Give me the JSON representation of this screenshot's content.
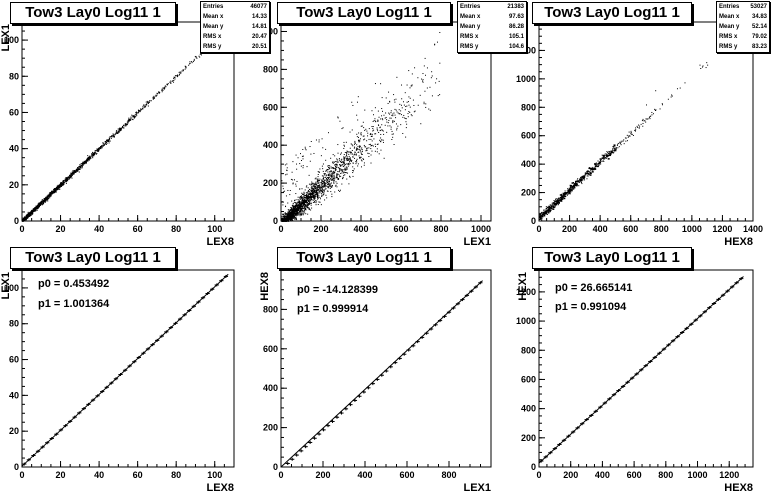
{
  "chart_data": [
    {
      "type": "scatter",
      "title": "Tow3 Lay0 Log11 1",
      "xlabel": "LEX8",
      "ylabel": "LEX1",
      "xlim": [
        0,
        110
      ],
      "ylim": [
        0,
        110
      ],
      "xticks": [
        0,
        20,
        40,
        60,
        80,
        100
      ],
      "yticks": [
        0,
        20,
        40,
        60,
        80,
        100
      ],
      "stats": [
        {
          "label": "Entries",
          "value": "46077"
        },
        {
          "label": "Mean x",
          "value": "14.33"
        },
        {
          "label": "Mean y",
          "value": "14.81"
        },
        {
          "label": "RMS x",
          "value": "20.47"
        },
        {
          "label": "RMS y",
          "value": "20.51"
        }
      ],
      "trend": {
        "slope": 1.0,
        "intercept": 0.3,
        "xmax": 104,
        "spread": 0.6
      }
    },
    {
      "type": "scatter",
      "title": "Tow3 Lay0 Log11 1",
      "xlabel": "LEX1",
      "ylabel": "HEX8",
      "xlim": [
        0,
        1050
      ],
      "ylim": [
        0,
        1050
      ],
      "xticks": [
        0,
        200,
        400,
        600,
        800,
        1000
      ],
      "yticks": [
        0,
        200,
        400,
        600,
        800,
        1000
      ],
      "stats": [
        {
          "label": "Entries",
          "value": "21383"
        },
        {
          "label": "Mean x",
          "value": "97.63"
        },
        {
          "label": "Mean y",
          "value": "86.28"
        },
        {
          "label": "RMS x",
          "value": "105.1"
        },
        {
          "label": "RMS y",
          "value": "104.6"
        }
      ],
      "trend": {
        "slope": 1.0,
        "intercept": -14,
        "xmax": 800,
        "spread": 30
      }
    },
    {
      "type": "scatter",
      "title": "Tow3 Lay0 Log11 1",
      "xlabel": "HEX8",
      "ylabel": "HEX1",
      "xlim": [
        0,
        1400
      ],
      "ylim": [
        0,
        1400
      ],
      "xticks": [
        0,
        200,
        400,
        600,
        800,
        1000,
        1200,
        1400
      ],
      "yticks": [
        0,
        200,
        400,
        600,
        800,
        1000,
        1200
      ],
      "stats": [
        {
          "label": "Entries",
          "value": "53027"
        },
        {
          "label": "Mean x",
          "value": "34.83"
        },
        {
          "label": "Mean y",
          "value": "52.14"
        },
        {
          "label": "RMS x",
          "value": "79.02"
        },
        {
          "label": "RMS y",
          "value": "83.23"
        }
      ],
      "trend": {
        "slope": 0.99,
        "intercept": 26,
        "xmax": 1100,
        "spread": 12
      }
    },
    {
      "type": "line",
      "title": "Tow3 Lay0 Log11 1",
      "xlabel": "LEX8",
      "ylabel": "LEX1",
      "xlim": [
        0,
        110
      ],
      "ylim": [
        0,
        110
      ],
      "xticks": [
        0,
        20,
        40,
        60,
        80,
        100
      ],
      "yticks": [
        0,
        20,
        40,
        60,
        80,
        100
      ],
      "fit": {
        "p0_text": "p0 = 0.453492",
        "p1_text": "p1 = 1.001364",
        "p0": 0.453492,
        "p1": 1.001364
      },
      "fit_range": [
        0,
        107
      ]
    },
    {
      "type": "line",
      "title": "Tow3 Lay0 Log11 1",
      "xlabel": "LEX1",
      "ylabel": "HEX8",
      "xlim": [
        0,
        1000
      ],
      "ylim": [
        0,
        1000
      ],
      "xticks": [
        0,
        200,
        400,
        600,
        800
      ],
      "yticks": [
        0,
        200,
        400,
        600,
        800
      ],
      "fit": {
        "p0_text": "p0 = -14.128399",
        "p1_text": "p1 = 0.999914",
        "p0": -14.128399,
        "p1": 0.999914
      },
      "fit_range": [
        0,
        960
      ]
    },
    {
      "type": "line",
      "title": "Tow3 Lay0 Log11 1",
      "xlabel": "HEX8",
      "ylabel": "HEX1",
      "xlim": [
        0,
        1350
      ],
      "ylim": [
        0,
        1350
      ],
      "xticks": [
        0,
        200,
        400,
        600,
        800,
        1000,
        1200
      ],
      "yticks": [
        0,
        200,
        400,
        600,
        800,
        1000,
        1200
      ],
      "fit": {
        "p0_text": "p0 = 26.665141",
        "p1_text": "p1 = 0.991094",
        "p0": 26.665141,
        "p1": 0.991094
      },
      "fit_range": [
        0,
        1290
      ]
    }
  ]
}
